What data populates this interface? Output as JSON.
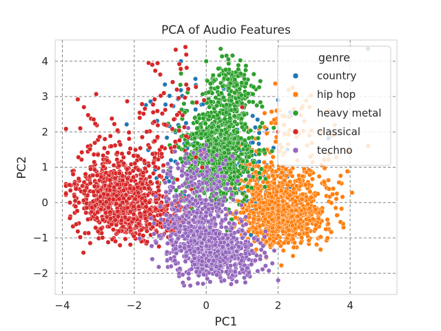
{
  "chart_data": {
    "type": "scatter",
    "title": "PCA of Audio Features",
    "xlabel": "PC1",
    "ylabel": "PC2",
    "xlim": [
      -4.2,
      5.3
    ],
    "ylim": [
      -2.6,
      4.6
    ],
    "xticks": [
      -4,
      -2,
      0,
      2,
      4
    ],
    "xtick_labels": [
      "−4",
      "−2",
      "0",
      "2",
      "4"
    ],
    "yticks": [
      -2,
      -1,
      0,
      1,
      2,
      3,
      4
    ],
    "ytick_labels": [
      "−2",
      "−1",
      "0",
      "1",
      "2",
      "3",
      "4"
    ],
    "grid": true,
    "legend": {
      "title": "genre",
      "placement": "top-right"
    },
    "series": [
      {
        "name": "country",
        "color": "#1f77b4",
        "clusters": [
          {
            "cx": 0.5,
            "cy": 1.2,
            "sx": 0.9,
            "sy": 0.8,
            "n": 150
          },
          {
            "cx": -0.8,
            "cy": 2.5,
            "sx": 0.5,
            "sy": 0.7,
            "n": 25
          },
          {
            "cx": 1.5,
            "cy": 0.2,
            "sx": 0.5,
            "sy": 0.5,
            "n": 30
          }
        ],
        "extra_points": [
          [
            4.5,
            4.35
          ],
          [
            -0.7,
            4.0
          ],
          [
            -0.3,
            3.5
          ],
          [
            2.0,
            2.9
          ]
        ]
      },
      {
        "name": "hip hop",
        "color": "#ff7f0e",
        "clusters": [
          {
            "cx": 2.2,
            "cy": -0.3,
            "sx": 0.55,
            "sy": 0.45,
            "n": 820
          },
          {
            "cx": 1.6,
            "cy": 0.6,
            "sx": 0.4,
            "sy": 0.4,
            "n": 120
          },
          {
            "cx": 2.8,
            "cy": 0.9,
            "sx": 0.6,
            "sy": 0.7,
            "n": 90
          },
          {
            "cx": 2.0,
            "cy": 2.2,
            "sx": 0.6,
            "sy": 0.5,
            "n": 40
          }
        ],
        "extra_points": [
          [
            4.5,
            1.6
          ],
          [
            3.5,
            1.9
          ],
          [
            2.4,
            3.25
          ],
          [
            -0.5,
            1.3
          ]
        ]
      },
      {
        "name": "heavy metal",
        "color": "#2ca02c",
        "clusters": [
          {
            "cx": 0.3,
            "cy": 1.2,
            "sx": 0.5,
            "sy": 0.65,
            "n": 700
          },
          {
            "cx": 0.5,
            "cy": 2.6,
            "sx": 0.45,
            "sy": 0.55,
            "n": 240
          },
          {
            "cx": 0.9,
            "cy": 3.4,
            "sx": 0.35,
            "sy": 0.35,
            "n": 60
          }
        ],
        "extra_points": [
          [
            0.4,
            4.35
          ],
          [
            0.0,
            4.0
          ],
          [
            -0.7,
            3.65
          ],
          [
            1.5,
            0.7
          ]
        ]
      },
      {
        "name": "classical",
        "color": "#d62728",
        "clusters": [
          {
            "cx": -2.5,
            "cy": 0.2,
            "sx": 0.55,
            "sy": 0.55,
            "n": 700
          },
          {
            "cx": -1.5,
            "cy": -0.4,
            "sx": 0.55,
            "sy": 0.35,
            "n": 200
          },
          {
            "cx": -2.0,
            "cy": 1.5,
            "sx": 0.8,
            "sy": 0.7,
            "n": 90
          },
          {
            "cx": -1.0,
            "cy": 2.7,
            "sx": 0.5,
            "sy": 0.7,
            "n": 50
          }
        ],
        "extra_points": [
          [
            -1.6,
            3.95
          ],
          [
            -1.5,
            3.9
          ],
          [
            -3.4,
            2.7
          ],
          [
            -3.5,
            2.1
          ],
          [
            -3.7,
            0.8
          ],
          [
            -3.8,
            0.5
          ],
          [
            -1.8,
            -1.1
          ],
          [
            1.0,
            2.7
          ],
          [
            2.0,
            2.0
          ]
        ]
      },
      {
        "name": "techno",
        "color": "#9467bd",
        "clusters": [
          {
            "cx": 0.3,
            "cy": -1.4,
            "sx": 0.6,
            "sy": 0.35,
            "n": 600
          },
          {
            "cx": -0.3,
            "cy": -0.6,
            "sx": 0.55,
            "sy": 0.5,
            "n": 350
          },
          {
            "cx": -0.2,
            "cy": 0.7,
            "sx": 0.45,
            "sy": 0.45,
            "n": 120
          }
        ],
        "extra_points": [
          [
            -1.5,
            -1.6
          ],
          [
            0.5,
            -2.2
          ],
          [
            2.0,
            -2.2
          ],
          [
            1.5,
            -1.6
          ],
          [
            -0.8,
            1.1
          ]
        ]
      }
    ]
  }
}
